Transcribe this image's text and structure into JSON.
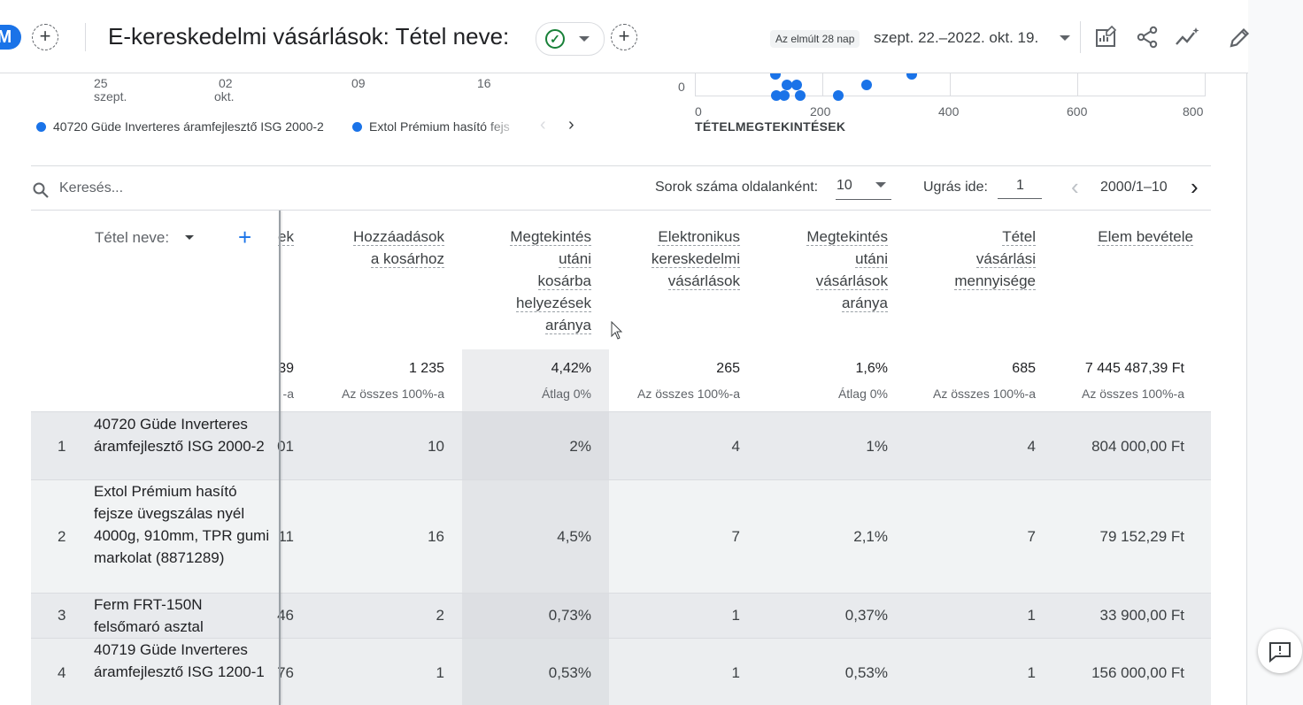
{
  "header": {
    "avatar_letter": "M",
    "title": "E-kereskedelmi vásárlások: Tétel neve:",
    "date_chip": "Az elmúlt 28 nap",
    "date_range": "szept. 22.–2022. okt. 19.",
    "icons": [
      "customize-report-icon",
      "share-icon",
      "insights-icon",
      "edit-icon"
    ]
  },
  "line_chart": {
    "x_ticks": [
      {
        "day": "25",
        "month": "szept."
      },
      {
        "day": "02",
        "month": "okt."
      },
      {
        "day": "09",
        "month": ""
      },
      {
        "day": "16",
        "month": ""
      }
    ]
  },
  "legend": {
    "items": [
      "40720 Güde Inverteres áramfejlesztő ISG 2000-2",
      "Extol Prémium hasító fejs"
    ]
  },
  "chart_data": {
    "type": "scatter",
    "xlabel": "TÉTELMEGTEKINTÉSEK",
    "x_ticks": [
      "0",
      "200",
      "400",
      "600",
      "800"
    ],
    "y_ticks": [
      "0"
    ],
    "xlim": [
      0,
      800
    ],
    "points": [
      {
        "x": 127,
        "y": 0.3
      },
      {
        "x": 128,
        "y": 0
      },
      {
        "x": 140,
        "y": 0
      },
      {
        "x": 145,
        "y": 0.15
      },
      {
        "x": 160,
        "y": 0.15
      },
      {
        "x": 165,
        "y": 0
      },
      {
        "x": 225,
        "y": 0
      },
      {
        "x": 270,
        "y": 0.15
      },
      {
        "x": 340,
        "y": 0.3
      }
    ]
  },
  "toolbar": {
    "search_placeholder": "Keresés...",
    "rows_label": "Sorok száma oldalanként:",
    "rows_value": "10",
    "goto_label": "Ugrás ide:",
    "goto_value": "1",
    "page_info": "2000/1–10"
  },
  "table": {
    "dimension_header": "Tétel neve:",
    "columns": [
      {
        "lines": [
          "ek"
        ],
        "total": "39",
        "sub": "-a"
      },
      {
        "lines": [
          "Hozzáadások",
          "a kosárhoz"
        ],
        "total": "1 235",
        "sub": "Az összes 100%-a"
      },
      {
        "lines": [
          "Megtekintés",
          "utáni",
          "kosárba",
          "helyezések",
          "aránya"
        ],
        "total": "4,42%",
        "sub": "Átlag 0%"
      },
      {
        "lines": [
          "Elektronikus",
          "kereskedelmi",
          "vásárlások"
        ],
        "total": "265",
        "sub": "Az összes 100%-a"
      },
      {
        "lines": [
          "Megtekintés",
          "utáni",
          "vásárlások",
          "aránya"
        ],
        "total": "1,6%",
        "sub": "Átlag 0%"
      },
      {
        "lines": [
          "Tétel",
          "vásárlási",
          "mennyisége"
        ],
        "total": "685",
        "sub": "Az összes 100%-a"
      },
      {
        "lines": [
          "Elem bevétele"
        ],
        "total": "7 445 487,39 Ft",
        "sub": "Az összes 100%-a"
      }
    ],
    "rows": [
      {
        "rank": "1",
        "name": "40720 Güde Inverteres áramfejlesztő ISG 2000-2",
        "cells": [
          "01",
          "10",
          "2%",
          "4",
          "1%",
          "4",
          "804 000,00 Ft"
        ]
      },
      {
        "rank": "2",
        "name": "Extol Prémium hasító fejsze üvegszálas nyél 4000g, 910mm, TPR gumi markolat (8871289)",
        "cells": [
          "11",
          "16",
          "4,5%",
          "7",
          "2,1%",
          "7",
          "79 152,29 Ft"
        ]
      },
      {
        "rank": "3",
        "name": "Ferm FRT-150N felsőmaró asztal",
        "cells": [
          "46",
          "2",
          "0,73%",
          "1",
          "0,37%",
          "1",
          "33 900,00 Ft"
        ]
      },
      {
        "rank": "4",
        "name": "40719 Güde Inverteres áramfejlesztő ISG 1200-1",
        "cells": [
          "76",
          "1",
          "0,53%",
          "1",
          "0,53%",
          "1",
          "156 000,00 Ft"
        ]
      }
    ]
  }
}
